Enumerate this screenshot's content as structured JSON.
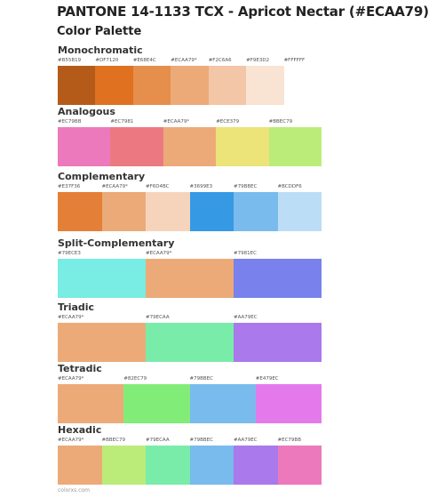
{
  "header": {
    "title": "PANTONE 14-1133 TCX - Apricot Nectar (#ECAA79)",
    "subtitle": "Color Palette"
  },
  "sections": [
    {
      "title": "Monochromatic",
      "colors": [
        "#B55B19",
        "#DF7120",
        "#E68E4C",
        "#ECAA79",
        "#F2C6A6",
        "#F9E3D2",
        "#FFFFFF"
      ],
      "labels": [
        "#B55B19",
        "#DF7120",
        "#E68E4C",
        "#ECAA79*",
        "#F2C6A6",
        "#F9E3D2",
        "#FFFFFF"
      ]
    },
    {
      "title": "Analogous",
      "colors": [
        "#EC79BB",
        "#EC7981",
        "#ECAA79",
        "#ECE379",
        "#BBEC79"
      ],
      "labels": [
        "#EC79BB",
        "#EC7981",
        "#ECAA79*",
        "#ECE379",
        "#BBEC79"
      ]
    },
    {
      "title": "Complementary",
      "colors": [
        "#E37F36",
        "#ECAA79",
        "#F6D4BC",
        "#3699E3",
        "#79BBEC",
        "#BCDDF6"
      ],
      "labels": [
        "#E37F36",
        "#ECAA79*",
        "#F6D4BC",
        "#3699E3",
        "#79BBEC",
        "#BCDDF6"
      ]
    },
    {
      "title": "Split-Complementary",
      "colors": [
        "#79ECE3",
        "#ECAA79",
        "#7981EC"
      ],
      "labels": [
        "#79ECE3",
        "#ECAA79*",
        "#7981EC"
      ]
    },
    {
      "title": "Triadic",
      "colors": [
        "#ECAA79",
        "#79ECAA",
        "#AA79EC"
      ],
      "labels": [
        "#ECAA79*",
        "#79ECAA",
        "#AA79EC"
      ]
    },
    {
      "title": "Tetradic",
      "colors": [
        "#ECAA79",
        "#82EC79",
        "#79BBEC",
        "#E479EC"
      ],
      "labels": [
        "#ECAA79*",
        "#82EC79",
        "#79BBEC",
        "#E479EC"
      ]
    },
    {
      "title": "Hexadic",
      "colors": [
        "#ECAA79",
        "#BBEC79",
        "#79ECAA",
        "#79BBEC",
        "#AA79EC",
        "#EC79BB"
      ],
      "labels": [
        "#ECAA79*",
        "#BBEC79",
        "#79ECAA",
        "#79BBEC",
        "#AA79EC",
        "#EC79BB"
      ]
    }
  ],
  "footer": "colorxs.com"
}
